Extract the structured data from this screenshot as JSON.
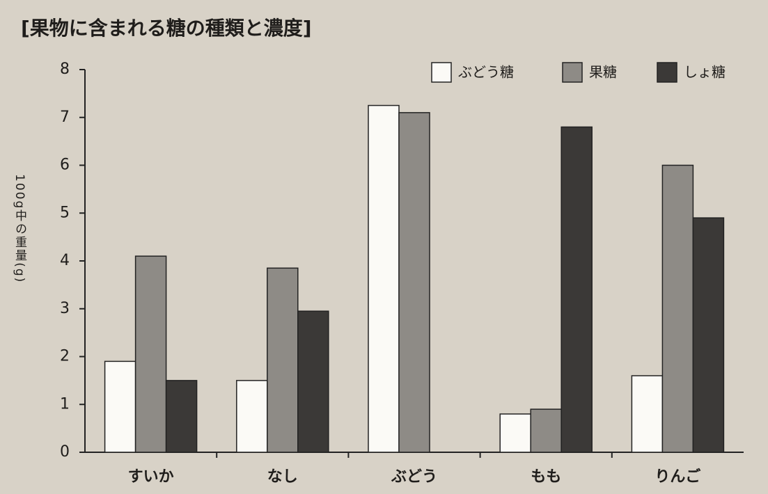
{
  "chart_data": {
    "type": "bar",
    "title": "[果物に含まれる糖の種類と濃度]",
    "y_label": "100g中の重量(g)",
    "categories": [
      "すいか",
      "なし",
      "ぶどう",
      "もも",
      "りんご"
    ],
    "series": [
      {
        "name": "ぶどう糖",
        "color": "#fbfaf6",
        "values": [
          1.9,
          1.5,
          7.25,
          0.8,
          1.6
        ]
      },
      {
        "name": "果糖",
        "color": "#8e8b86",
        "values": [
          4.1,
          3.85,
          7.1,
          0.9,
          6.0
        ]
      },
      {
        "name": "しょ糖",
        "color": "#3b3937",
        "values": [
          1.5,
          2.95,
          0,
          6.8,
          4.9
        ]
      }
    ],
    "ylim": [
      0,
      8
    ],
    "yticks": [
      0,
      1,
      2,
      3,
      4,
      5,
      6,
      7,
      8
    ],
    "legend": "top-right"
  }
}
